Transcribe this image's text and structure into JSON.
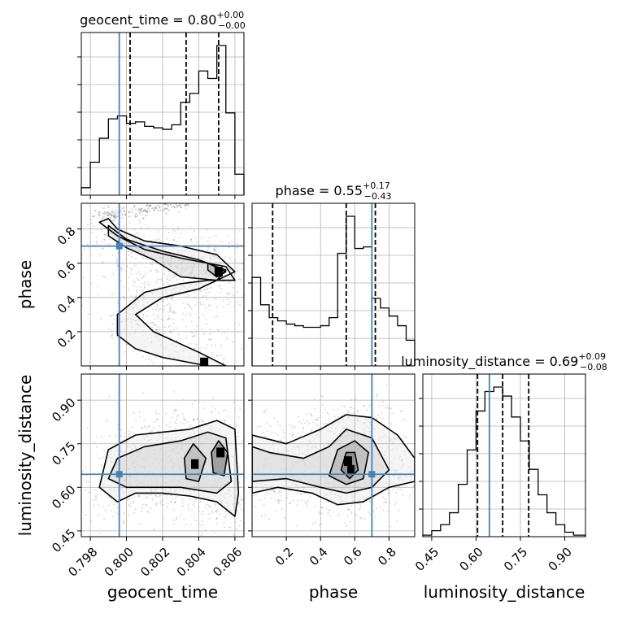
{
  "chart_data": {
    "type": "corner",
    "parameters": [
      "geocent_time",
      "phase",
      "luminosity_distance"
    ],
    "truth_color": "#4682b4",
    "panels": {
      "geocent_time_hist": {
        "title": {
          "name": "geocent_time",
          "median": "0.80",
          "plus": "+0.00",
          "minus": "−0.00"
        },
        "xlim": [
          0.7975,
          0.8065
        ],
        "bin_edges": [
          0.7975,
          0.798,
          0.7985,
          0.799,
          0.7995,
          0.8,
          0.8005,
          0.801,
          0.8015,
          0.802,
          0.8025,
          0.803,
          0.8035,
          0.804,
          0.8045,
          0.805,
          0.8055,
          0.806,
          0.8065
        ],
        "counts": [
          0.05,
          0.22,
          0.38,
          0.51,
          0.53,
          0.48,
          0.49,
          0.46,
          0.45,
          0.44,
          0.47,
          0.62,
          0.68,
          0.83,
          0.78,
          1.0,
          0.55,
          0.14
        ],
        "quantiles": [
          0.8002,
          0.8033,
          0.8051
        ],
        "truth": 0.7996
      },
      "phase_hist": {
        "title": {
          "name": "phase",
          "median": "0.55",
          "plus": "+0.17",
          "minus": "−0.43"
        },
        "xlim": [
          0.0,
          0.95
        ],
        "bin_edges": [
          0.0,
          0.05,
          0.1,
          0.15,
          0.2,
          0.25,
          0.3,
          0.35,
          0.4,
          0.45,
          0.5,
          0.55,
          0.6,
          0.65,
          0.7,
          0.75,
          0.8,
          0.85,
          0.9,
          0.95
        ],
        "counts": [
          0.55,
          0.38,
          0.3,
          0.28,
          0.26,
          0.25,
          0.24,
          0.24,
          0.25,
          0.3,
          0.7,
          0.93,
          0.73,
          0.74,
          0.42,
          0.36,
          0.31,
          0.25,
          0.16
        ],
        "quantiles": [
          0.12,
          0.55,
          0.72
        ],
        "truth": 0.7
      },
      "distance_hist": {
        "title": {
          "name": "luminosity_distance",
          "median": "0.69",
          "plus": "+0.09",
          "minus": "−0.08"
        },
        "xlim": [
          0.42,
          0.97
        ],
        "bin_edges": [
          0.42,
          0.45,
          0.48,
          0.51,
          0.54,
          0.57,
          0.6,
          0.63,
          0.66,
          0.69,
          0.72,
          0.75,
          0.78,
          0.81,
          0.84,
          0.87,
          0.9,
          0.93,
          0.97
        ],
        "counts": [
          0.01,
          0.04,
          0.08,
          0.16,
          0.35,
          0.58,
          0.84,
          0.97,
          1.0,
          0.94,
          0.8,
          0.64,
          0.45,
          0.28,
          0.16,
          0.08,
          0.03,
          0.01
        ],
        "quantiles": [
          0.605,
          0.69,
          0.778
        ],
        "truth": 0.645
      },
      "phase_vs_geocent_time": {
        "xlim": [
          0.7975,
          0.8065
        ],
        "ylim": [
          0.0,
          0.95
        ],
        "truth": [
          0.7996,
          0.7
        ],
        "contours": [
          [
            [
              0.7985,
              0.84
            ],
            [
              0.7995,
              0.76
            ],
            [
              0.801,
              0.68
            ],
            [
              0.803,
              0.63
            ],
            [
              0.8045,
              0.6
            ],
            [
              0.8055,
              0.58
            ],
            [
              0.806,
              0.5
            ],
            [
              0.8045,
              0.5
            ],
            [
              0.803,
              0.48
            ],
            [
              0.801,
              0.43
            ],
            [
              0.7995,
              0.3
            ],
            [
              0.7995,
              0.18
            ],
            [
              0.8005,
              0.1
            ],
            [
              0.802,
              0.05
            ],
            [
              0.8045,
              0.0
            ],
            [
              0.8055,
              0.0
            ],
            [
              0.804,
              0.08
            ],
            [
              0.8015,
              0.2
            ],
            [
              0.8005,
              0.3
            ],
            [
              0.802,
              0.4
            ],
            [
              0.804,
              0.45
            ],
            [
              0.806,
              0.55
            ],
            [
              0.805,
              0.65
            ],
            [
              0.803,
              0.7
            ],
            [
              0.801,
              0.73
            ],
            [
              0.7995,
              0.8
            ],
            [
              0.799,
              0.86
            ]
          ],
          [
            [
              0.799,
              0.82
            ],
            [
              0.8,
              0.74
            ],
            [
              0.802,
              0.67
            ],
            [
              0.804,
              0.62
            ],
            [
              0.8055,
              0.56
            ],
            [
              0.805,
              0.5
            ],
            [
              0.803,
              0.52
            ],
            [
              0.8015,
              0.62
            ],
            [
              0.8,
              0.69
            ],
            [
              0.799,
              0.76
            ]
          ],
          [
            [
              0.8045,
              0.6
            ],
            [
              0.8055,
              0.55
            ],
            [
              0.805,
              0.52
            ],
            [
              0.8045,
              0.56
            ]
          ]
        ],
        "scatter_band": [
          [
            0.799,
            0.88
          ],
          [
            0.8005,
            0.9
          ],
          [
            0.802,
            0.93
          ],
          [
            0.803,
            0.95
          ]
        ],
        "dark_cells": [
          [
            0.8051,
            0.55
          ],
          [
            0.8043,
            0.02
          ]
        ]
      },
      "distance_vs_geocent_time": {
        "xlim": [
          0.7975,
          0.8065
        ],
        "ylim": [
          0.43,
          0.99
        ],
        "truth": [
          0.7996,
          0.645
        ],
        "contours": [
          [
            [
              0.7985,
              0.6
            ],
            [
              0.7995,
              0.55
            ],
            [
              0.8005,
              0.58
            ],
            [
              0.802,
              0.58
            ],
            [
              0.8035,
              0.57
            ],
            [
              0.805,
              0.55
            ],
            [
              0.806,
              0.5
            ],
            [
              0.8062,
              0.58
            ],
            [
              0.806,
              0.8
            ],
            [
              0.805,
              0.83
            ],
            [
              0.8035,
              0.8
            ],
            [
              0.802,
              0.79
            ],
            [
              0.8005,
              0.78
            ],
            [
              0.799,
              0.73
            ]
          ],
          [
            [
              0.799,
              0.63
            ],
            [
              0.8,
              0.6
            ],
            [
              0.803,
              0.6
            ],
            [
              0.805,
              0.58
            ],
            [
              0.8058,
              0.62
            ],
            [
              0.8055,
              0.77
            ],
            [
              0.8045,
              0.79
            ],
            [
              0.803,
              0.76
            ],
            [
              0.801,
              0.74
            ],
            [
              0.7995,
              0.7
            ]
          ],
          [
            [
              0.8033,
              0.63
            ],
            [
              0.804,
              0.62
            ],
            [
              0.8044,
              0.7
            ],
            [
              0.8037,
              0.75
            ],
            [
              0.8032,
              0.7
            ]
          ],
          [
            [
              0.8048,
              0.65
            ],
            [
              0.8054,
              0.64
            ],
            [
              0.8056,
              0.72
            ],
            [
              0.8051,
              0.76
            ],
            [
              0.8047,
              0.72
            ]
          ]
        ],
        "dark_cells": [
          [
            0.8052,
            0.72
          ],
          [
            0.8038,
            0.68
          ]
        ]
      },
      "distance_vs_phase": {
        "xlim": [
          0.0,
          0.95
        ],
        "ylim": [
          0.43,
          0.99
        ],
        "truth": [
          0.7,
          0.645
        ],
        "contours": [
          [
            [
              0.0,
              0.58
            ],
            [
              0.15,
              0.6
            ],
            [
              0.35,
              0.58
            ],
            [
              0.5,
              0.54
            ],
            [
              0.65,
              0.55
            ],
            [
              0.8,
              0.6
            ],
            [
              0.95,
              0.62
            ],
            [
              0.95,
              0.7
            ],
            [
              0.85,
              0.78
            ],
            [
              0.7,
              0.84
            ],
            [
              0.55,
              0.85
            ],
            [
              0.4,
              0.8
            ],
            [
              0.2,
              0.75
            ],
            [
              0.0,
              0.78
            ]
          ],
          [
            [
              0.0,
              0.62
            ],
            [
              0.2,
              0.63
            ],
            [
              0.4,
              0.6
            ],
            [
              0.55,
              0.58
            ],
            [
              0.7,
              0.6
            ],
            [
              0.8,
              0.66
            ],
            [
              0.7,
              0.77
            ],
            [
              0.55,
              0.8
            ],
            [
              0.45,
              0.74
            ],
            [
              0.3,
              0.7
            ],
            [
              0.1,
              0.72
            ],
            [
              0.0,
              0.74
            ]
          ],
          [
            [
              0.45,
              0.64
            ],
            [
              0.55,
              0.61
            ],
            [
              0.65,
              0.63
            ],
            [
              0.68,
              0.72
            ],
            [
              0.6,
              0.76
            ],
            [
              0.5,
              0.73
            ]
          ],
          [
            [
              0.52,
              0.66
            ],
            [
              0.57,
              0.63
            ],
            [
              0.62,
              0.66
            ],
            [
              0.6,
              0.72
            ],
            [
              0.55,
              0.72
            ]
          ]
        ],
        "dark_cells": [
          [
            0.56,
            0.69
          ],
          [
            0.58,
            0.66
          ]
        ]
      }
    },
    "axes": {
      "geocent_time": {
        "label": "geocent_time",
        "ticks": [
          "0.798",
          "0.800",
          "0.802",
          "0.804",
          "0.806"
        ],
        "tick_values": [
          0.798,
          0.8,
          0.802,
          0.804,
          0.806
        ]
      },
      "phase_x": {
        "label": "phase",
        "ticks": [
          "0.2",
          "0.4",
          "0.6",
          "0.8"
        ],
        "tick_values": [
          0.2,
          0.4,
          0.6,
          0.8
        ]
      },
      "phase_y": {
        "label": "phase",
        "ticks": [
          "0.2",
          "0.4",
          "0.6",
          "0.8"
        ],
        "tick_values": [
          0.2,
          0.4,
          0.6,
          0.8
        ]
      },
      "distance_x": {
        "label": "luminosity_distance",
        "ticks": [
          "0.45",
          "0.60",
          "0.75",
          "0.90"
        ],
        "tick_values": [
          0.45,
          0.6,
          0.75,
          0.9
        ]
      },
      "distance_y": {
        "label": "luminosity_distance",
        "ticks": [
          "0.45",
          "0.60",
          "0.75",
          "0.90"
        ],
        "tick_values": [
          0.45,
          0.6,
          0.75,
          0.9
        ]
      }
    }
  }
}
